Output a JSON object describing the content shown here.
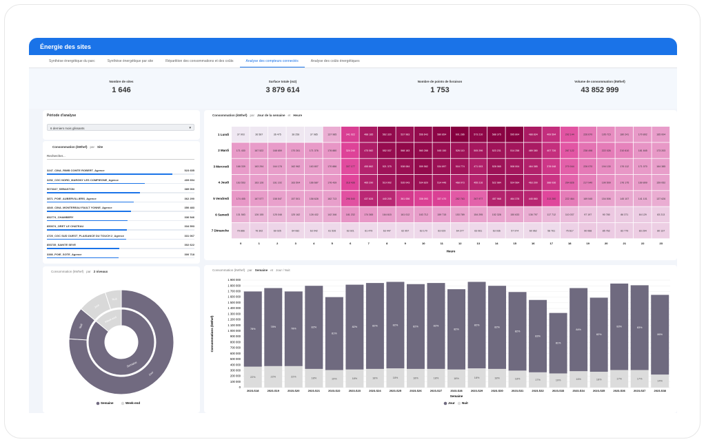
{
  "header": {
    "title": "Énergie des sites"
  },
  "tabs": {
    "items": [
      "Synthèse énergétique du parc",
      "Synthèse énergétique par site",
      "Répartition des consommations et des coûts",
      "Analyse des compteurs connectés",
      "Analyse des coûts énergétiques"
    ],
    "active": 3
  },
  "kpis": [
    {
      "label": "Nombre de sites",
      "value": "1 646"
    },
    {
      "label": "Surface totale (m2)",
      "value": "3 879 614"
    },
    {
      "label": "Nombre de points de livraison",
      "value": "1 753"
    },
    {
      "label": "Volume de consommation (kWhef)",
      "value": "43 852 999"
    }
  ],
  "period": {
    "title": "Période d'analyse",
    "selected": "6 derniers mois glissants"
  },
  "site_list": {
    "title": "Consommation (kWhef)",
    "per": "par",
    "dimension": "Site",
    "search_placeholder": "Rechercher...",
    "sites": [
      {
        "name": "3247_CINA_RIMB COMTE ROBERT_Agence",
        "value": "523 655"
      },
      {
        "name": "3252_CGC NORD_MARGNY LES COMPIEGNE_Agence",
        "value": "409 654"
      },
      {
        "name": "5073347_SEBASTON",
        "value": "389 060"
      },
      {
        "name": "3871_POIE_AUBERVILLIERS_Agence",
        "value": "362 290"
      },
      {
        "name": "4840_CINA_MONTEREAU FAULT YONNE_Agence",
        "value": "350 483"
      },
      {
        "name": "852774_CHAMBERY",
        "value": "336 546"
      },
      {
        "name": "850074_ORET LE CHATEAU",
        "value": "334 593"
      },
      {
        "name": "4720_CGC SUD OUEST_PLAISANCE DU TOUCH 2_Agence",
        "value": "331 067"
      },
      {
        "name": "853735_SAINTE SEVE",
        "value": "302 622"
      },
      {
        "name": "3380_POIE_SOTE_Agence",
        "value": "300 718"
      }
    ]
  },
  "heatmap": {
    "title": "Consommation (kWhef)",
    "per": "par",
    "dimension1": "Jour de la semaine",
    "and": "et",
    "dimension2": "Heure",
    "x_title": "Heure",
    "days": [
      "1 Lundi",
      "2 Mardi",
      "3 Mercredi",
      "4 Jeudi",
      "5 Vendredi",
      "6 Samedi",
      "7 Dimanche"
    ],
    "hours": [
      0,
      1,
      2,
      3,
      4,
      5,
      6,
      7,
      8,
      9,
      10,
      11,
      12,
      13,
      14,
      15,
      16,
      17,
      18,
      19,
      20,
      21,
      22,
      23
    ],
    "low_color": "#efe8f2",
    "mid_color": "#e0449a",
    "high_color": "#86003f",
    "values": [
      [
        "37 903",
        "36 587",
        "36 475",
        "38 258",
        "37 985",
        "137 985",
        "341 022",
        "488 185",
        "562 320",
        "537 983",
        "556 643",
        "580 854",
        "601 286",
        "573 210",
        "588 375",
        "595 804",
        "488 834",
        "409 594",
        "292 144",
        "226 670",
        "195 715",
        "180 241",
        "170 802",
        "165 004"
      ],
      [
        "171 430",
        "167 522",
        "168 659",
        "170 261",
        "171 376",
        "176 880",
        "324 240",
        "475 582",
        "552 037",
        "568 183",
        "560 288",
        "545 150",
        "526 110",
        "505 296",
        "523 231",
        "514 258",
        "489 380",
        "407 726",
        "287 122",
        "238 498",
        "222 026",
        "210 610",
        "181 845",
        "173 203"
      ],
      [
        "168 339",
        "163 294",
        "164 178",
        "162 962",
        "163 807",
        "170 886",
        "307 177",
        "455 862",
        "521 375",
        "538 084",
        "559 582",
        "534 897",
        "516 774",
        "471 003",
        "528 065",
        "508 004",
        "464 385",
        "378 048",
        "270 044",
        "226 070",
        "194 130",
        "176 112",
        "171 070",
        "164 385"
      ],
      [
        "163 553",
        "163 126",
        "161 102",
        "163 504",
        "166 687",
        "176 439",
        "318 436",
        "465 290",
        "519 002",
        "535 043",
        "534 820",
        "514 446",
        "468 073",
        "455 216",
        "522 984",
        "524 564",
        "463 200",
        "388 036",
        "264 826",
        "217 940",
        "190 509",
        "176 175",
        "169 809",
        "159 052"
      ],
      [
        "174 455",
        "167 577",
        "158 547",
        "157 501",
        "158 628",
        "162 713",
        "296 540",
        "437 828",
        "440 205",
        "361 056",
        "336 093",
        "337 470",
        "282 763",
        "267 977",
        "457 968",
        "464 378",
        "445 860",
        "313 280",
        "222 464",
        "169 545",
        "154 506",
        "145 107",
        "141 101",
        "137 626"
      ],
      [
        "131 583",
        "126 155",
        "125 048",
        "125 162",
        "128 432",
        "142 346",
        "181 232",
        "174 365",
        "164 615",
        "161 012",
        "163 712",
        "159 715",
        "153 789",
        "154 295",
        "152 328",
        "150 633",
        "136 797",
        "117 712",
        "110 037",
        "97 197",
        "90 780",
        "86 371",
        "84 129",
        "83 213"
      ],
      [
        "79 866",
        "76 302",
        "69 025",
        "64 082",
        "63 042",
        "61 526",
        "63 921",
        "61 479",
        "63 447",
        "62 957",
        "63 170",
        "63 029",
        "64 277",
        "63 061",
        "63 036",
        "57 974",
        "60 962",
        "58 761",
        "75 617",
        "90 068",
        "85 762",
        "83 779",
        "83 294",
        "80 137"
      ]
    ]
  },
  "sunburst": {
    "title": "Consommation (kWhef)",
    "per": "par",
    "dimension": "2 niveaux",
    "inner": [
      {
        "name": "Semaine",
        "value": 86,
        "color": "#716a80"
      },
      {
        "name": "Week-end",
        "value": 14,
        "color": "#d9d9d9"
      }
    ],
    "outer": [
      {
        "name": "Jour",
        "value": 76,
        "parent": 0
      },
      {
        "name": "Nuit",
        "value": 10,
        "parent": 0
      },
      {
        "name": "Jour",
        "value": 9,
        "parent": 1
      },
      {
        "name": "Nuit",
        "value": 5,
        "parent": 1
      }
    ]
  },
  "bar_chart": {
    "type": "bar",
    "stacked": true,
    "title": "Consommation (kWhef)",
    "per": "par",
    "dimension1": "Semaine",
    "and": "et",
    "dimension2": "Jour / Nuit",
    "x_title": "Semaine",
    "y_title": "Consommations (kWhef)",
    "grid": true,
    "categories": [
      "2023-S18",
      "2023-S19",
      "2023-S20",
      "2023-S21",
      "2023-S22",
      "2023-S23",
      "2023-S24",
      "2023-S25",
      "2023-S26",
      "2023-S27",
      "2023-S28",
      "2023-S29",
      "2023-S30",
      "2023-S31",
      "2023-S32",
      "2023-S33",
      "2023-S34",
      "2023-S35",
      "2023-S36",
      "2023-S37",
      "2023-S38"
    ],
    "series": [
      {
        "name": "Nuit",
        "color": "#dcdcdc",
        "values": [
          370000,
          380000,
          380000,
          330000,
          310000,
          320000,
          330000,
          340000,
          330000,
          330000,
          320000,
          340000,
          330000,
          300000,
          270000,
          250000,
          290000,
          280000,
          310000,
          310000,
          230000
        ],
        "share_labels": [
          "22%",
          "22%",
          "22%",
          "18%",
          "19%",
          "18%",
          "18%",
          "18%",
          "18%",
          "18%",
          "18%",
          "18%",
          "18%",
          "18%",
          "17%",
          "19%",
          "16%",
          "18%",
          "17%",
          "17%",
          "14%"
        ]
      },
      {
        "name": "Jour",
        "color": "#6f6a7f",
        "values": [
          1330000,
          1380000,
          1320000,
          1470000,
          1290000,
          1500000,
          1520000,
          1530000,
          1500000,
          1520000,
          1420000,
          1530000,
          1470000,
          1390000,
          1280000,
          1070000,
          1470000,
          1310000,
          1530000,
          1500000,
          1410000
        ],
        "share_labels": [
          "78%",
          "78%",
          "78%",
          "82%",
          "81%",
          "82%",
          "82%",
          "82%",
          "82%",
          "82%",
          "82%",
          "82%",
          "82%",
          "82%",
          "83%",
          "81%",
          "84%",
          "82%",
          "83%",
          "83%",
          "86%"
        ]
      }
    ],
    "legend_order": [
      1,
      0
    ],
    "ylim": [
      0,
      1900000
    ],
    "yticks": [
      0,
      {
        "value": 100000,
        "label": "100 000"
      },
      {
        "value": 200000,
        "label": "200 000"
      },
      {
        "value": 300000,
        "label": "300 000"
      },
      {
        "value": 400000,
        "label": "400 000"
      },
      {
        "value": 500000,
        "label": "500 000"
      },
      {
        "value": 600000,
        "label": "600 000"
      },
      {
        "value": 700000,
        "label": "700 000"
      },
      {
        "value": 800000,
        "label": "800 000"
      },
      {
        "value": 900000,
        "label": "900 000"
      },
      {
        "value": 1000000,
        "label": "1 000 000"
      },
      {
        "value": 1100000,
        "label": "1 100 000"
      },
      {
        "value": 1200000,
        "label": "1 200 000"
      },
      {
        "value": 1300000,
        "label": "1 300 000"
      },
      {
        "value": 1400000,
        "label": "1 400 000"
      },
      {
        "value": 1500000,
        "label": "1 500 000"
      },
      {
        "value": 1600000,
        "label": "1 600 000"
      },
      {
        "value": 1700000,
        "label": "1 700 000"
      },
      {
        "value": 1800000,
        "label": "1 800 000"
      },
      {
        "value": 1900000,
        "label": "1 900 000"
      }
    ]
  }
}
